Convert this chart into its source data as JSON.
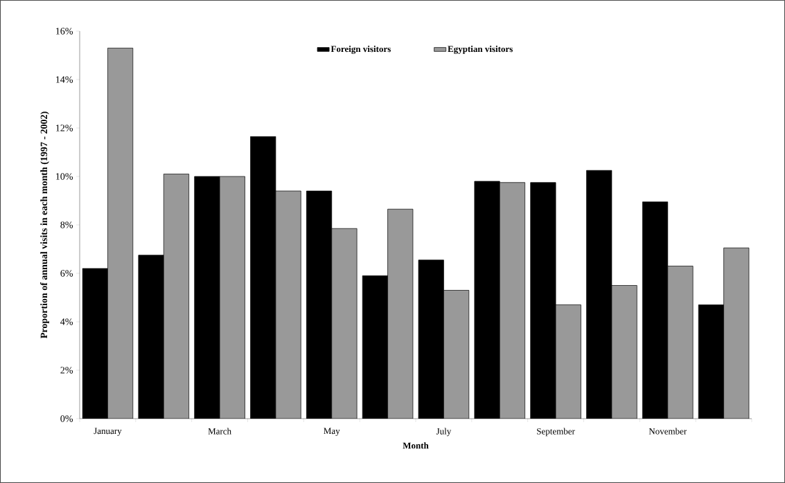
{
  "chart_data": {
    "type": "bar",
    "xlabel": "Month",
    "ylabel": "Proportion of annual visits in each month (1997 - 2002)",
    "categories": [
      "January",
      null,
      "March",
      null,
      "May",
      null,
      "July",
      null,
      "September",
      null,
      "November",
      null
    ],
    "series": [
      {
        "name": "Foreign visitors",
        "color": "#000000",
        "values": [
          6.2,
          6.75,
          10.0,
          11.65,
          9.4,
          5.9,
          6.55,
          9.8,
          9.75,
          10.25,
          8.95,
          4.7
        ]
      },
      {
        "name": "Egyptian visitors",
        "color": "#999999",
        "values": [
          15.3,
          10.1,
          10.0,
          9.4,
          7.85,
          8.65,
          5.3,
          9.75,
          4.7,
          5.5,
          6.3,
          7.05
        ]
      }
    ],
    "ylim": [
      0,
      16
    ],
    "yticks": [
      {
        "value": 0,
        "label": "0%"
      },
      {
        "value": 2,
        "label": "2%"
      },
      {
        "value": 4,
        "label": "4%"
      },
      {
        "value": 6,
        "label": "6%"
      },
      {
        "value": 8,
        "label": "8%"
      },
      {
        "value": 10,
        "label": "10%"
      },
      {
        "value": 12,
        "label": "12%"
      },
      {
        "value": 14,
        "label": "14%"
      },
      {
        "value": 16,
        "label": "16%"
      }
    ],
    "legend": "top",
    "grid": false
  }
}
